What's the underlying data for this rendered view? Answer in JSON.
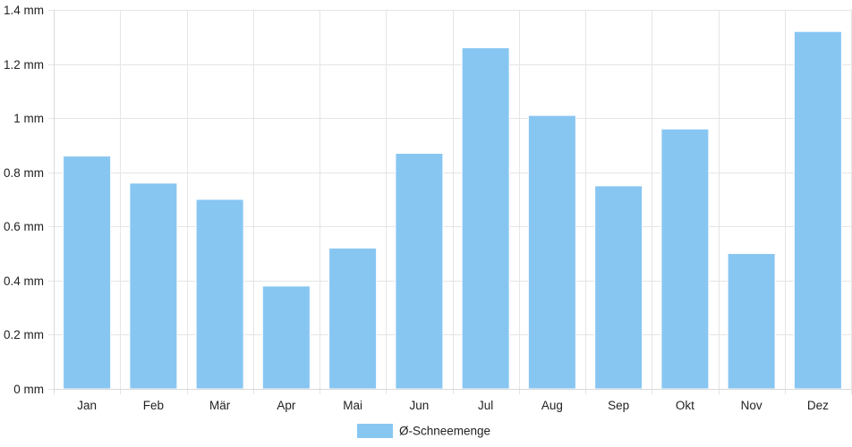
{
  "chart_data": {
    "type": "bar",
    "categories": [
      "Jan",
      "Feb",
      "Mär",
      "Apr",
      "Mai",
      "Jun",
      "Jul",
      "Aug",
      "Sep",
      "Okt",
      "Nov",
      "Dez"
    ],
    "series": [
      {
        "name": "Ø-Schneemenge",
        "values": [
          0.86,
          0.76,
          0.7,
          0.38,
          0.52,
          0.87,
          1.26,
          1.01,
          0.75,
          0.96,
          0.5,
          1.32
        ],
        "color": "#88c6f2"
      }
    ],
    "y_ticks": [
      "0 mm",
      "0.2 mm",
      "0.4 mm",
      "0.6 mm",
      "0.8 mm",
      "1 mm",
      "1.2 mm",
      "1.4 mm"
    ],
    "ylim": [
      0,
      1.4
    ],
    "grid": true,
    "legend_position": "bottom",
    "title": "",
    "xlabel": "",
    "ylabel": ""
  }
}
